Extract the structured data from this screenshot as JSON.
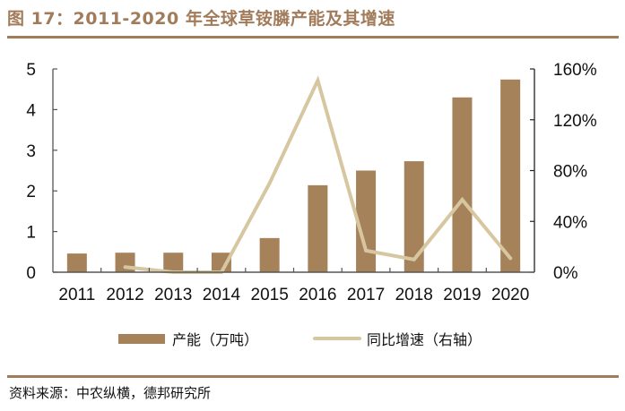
{
  "header": {
    "title": "图 17：2011-2020 年全球草铵膦产能及其增速"
  },
  "footer": {
    "source": "资料来源：中农纵横，德邦研究所"
  },
  "legend": {
    "bar_label": "产能（万吨）",
    "line_label": "同比增速（右轴）"
  },
  "colors": {
    "accent": "#a27b5a",
    "bar": "#a6825b",
    "line": "#d7c7a0",
    "axis": "#555555"
  },
  "chart_data": {
    "type": "bar+line",
    "title": "图 17：2011-2020 年全球草铵膦产能及其增速",
    "categories": [
      "2011",
      "2012",
      "2013",
      "2014",
      "2015",
      "2016",
      "2017",
      "2018",
      "2019",
      "2020"
    ],
    "series": [
      {
        "name": "产能（万吨）",
        "type": "bar",
        "axis": "left",
        "values": [
          0.46,
          0.48,
          0.48,
          0.48,
          0.84,
          2.14,
          2.5,
          2.73,
          4.3,
          4.74
        ]
      },
      {
        "name": "同比增速（右轴）",
        "type": "line",
        "axis": "right",
        "values": [
          null,
          4,
          0,
          0,
          70,
          151,
          17,
          10,
          57,
          11
        ]
      }
    ],
    "left_axis": {
      "ylim": [
        0,
        5
      ],
      "ticks": [
        "0",
        "1",
        "2",
        "3",
        "4",
        "5"
      ]
    },
    "right_axis": {
      "ylim": [
        0,
        160
      ],
      "ticks": [
        "0%",
        "40%",
        "80%",
        "120%",
        "160%"
      ]
    },
    "xlabel": "",
    "ylabel": "",
    "grid": false,
    "legend_position": "bottom"
  }
}
